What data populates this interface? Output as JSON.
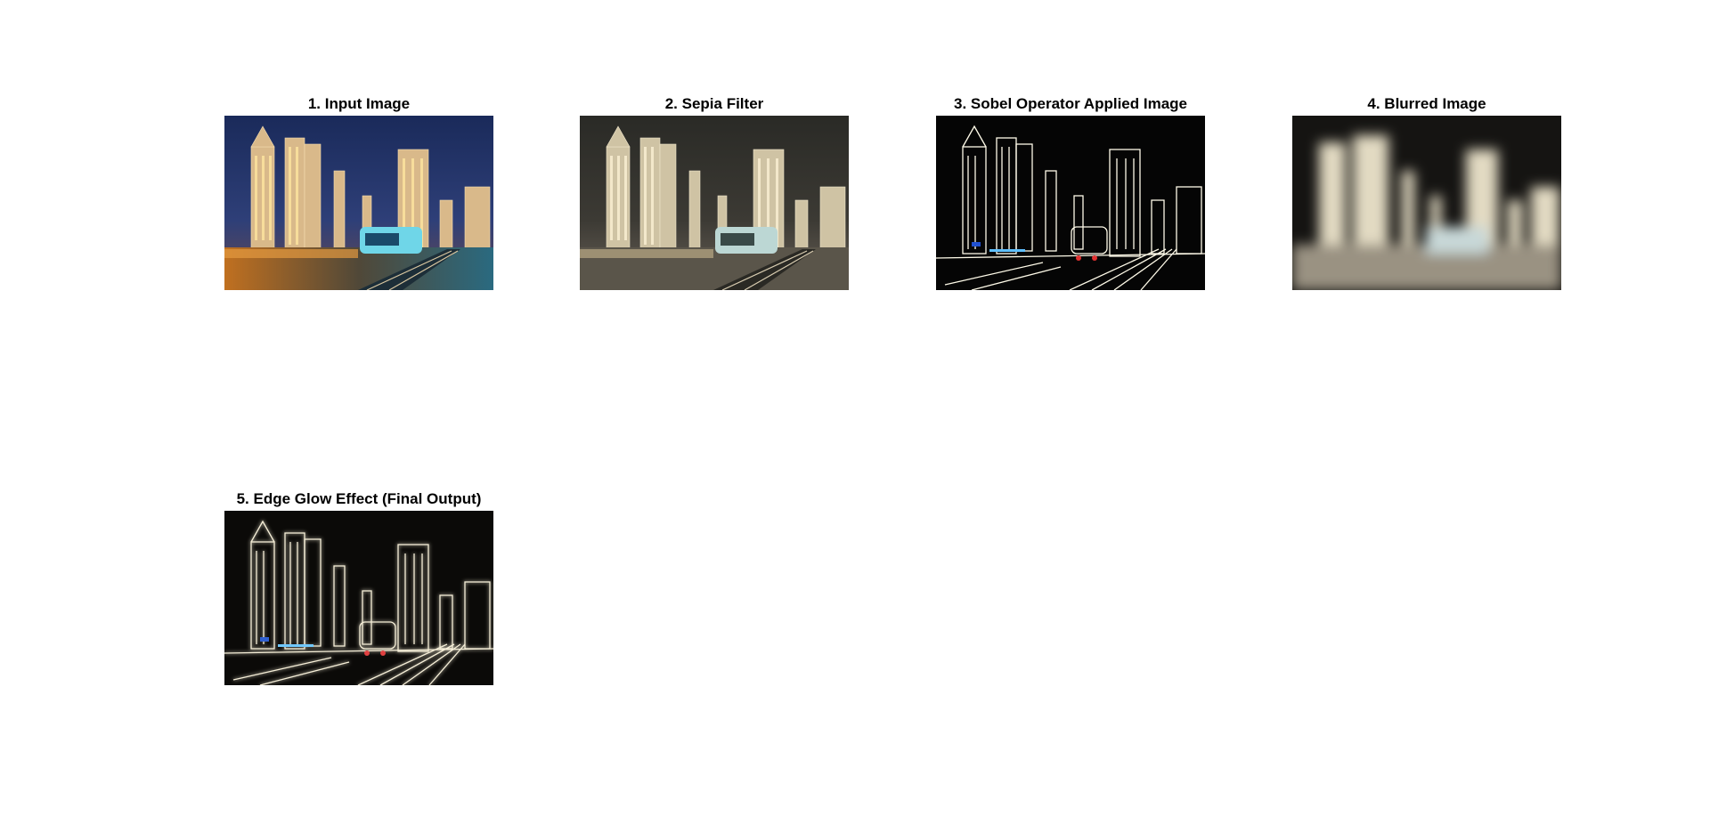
{
  "figure": {
    "panels": [
      {
        "title": "1. Input Image",
        "style": "input"
      },
      {
        "title": "2. Sepia Filter",
        "style": "sepia"
      },
      {
        "title": "3. Sobel Operator Applied Image",
        "style": "sobel"
      },
      {
        "title": "4. Blurred Image",
        "style": "blurred"
      },
      {
        "title": "5. Edge Glow Effect (Final Output)",
        "style": "glow"
      }
    ]
  },
  "colors": {
    "background": "#ffffff",
    "title_text": "#000000",
    "edge_background": "#050505",
    "edge_lines": "#fffbe9"
  }
}
